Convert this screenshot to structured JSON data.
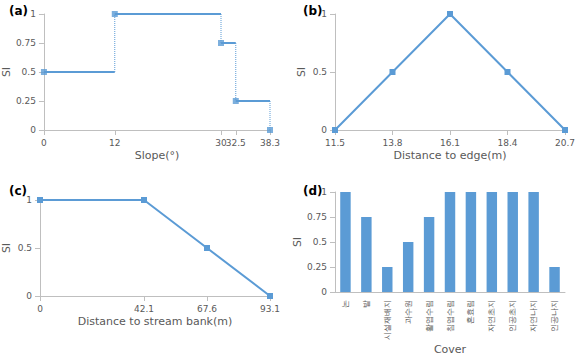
{
  "chart_data": [
    {
      "type": "line",
      "title": "(a)",
      "x_label": "Slope(°)",
      "y_label": "SI",
      "x": [
        0,
        12,
        30,
        32.5,
        38.3
      ],
      "values": [
        0.5,
        1,
        0.75,
        0.25,
        0
      ],
      "xlim": [
        0,
        38.3
      ],
      "xticks": [
        0,
        12,
        30,
        32.5,
        38.3
      ],
      "ylim": [
        0,
        1
      ],
      "yticks": [
        0,
        0.25,
        0.5,
        0.75,
        1
      ],
      "color": "#5b9bd5",
      "marker": "square",
      "line_style": "step",
      "grid": false
    },
    {
      "type": "line",
      "title": "(b)",
      "x_label": "Distance to edge(m)",
      "y_label": "SI",
      "x": [
        11.5,
        13.8,
        16.1,
        18.4,
        20.7
      ],
      "values": [
        0,
        0.5,
        1,
        0.5,
        0
      ],
      "xlim": [
        11.5,
        20.7
      ],
      "xticks": [
        11.5,
        13.8,
        16.1,
        18.4,
        20.7
      ],
      "ylim": [
        0,
        1
      ],
      "yticks": [
        0,
        0.5,
        1
      ],
      "color": "#5b9bd5",
      "marker": "square",
      "line_style": "solid",
      "grid": false
    },
    {
      "type": "line",
      "title": "(c)",
      "x_label": "Distance to stream bank(m)",
      "y_label": "SI",
      "x": [
        0,
        42.1,
        67.6,
        93.1
      ],
      "values": [
        1,
        1,
        0.5,
        0
      ],
      "xlim": [
        0,
        93.1
      ],
      "xticks": [
        0,
        42.1,
        67.6,
        93.1
      ],
      "ylim": [
        0,
        1
      ],
      "yticks": [
        0,
        0.5,
        1
      ],
      "color": "#5b9bd5",
      "marker": "square",
      "line_style": "solid",
      "grid": false
    },
    {
      "type": "bar",
      "title": "(d)",
      "x_label": "Cover",
      "y_label": "SI",
      "categories": [
        "논",
        "밭",
        "시설재배지",
        "과수원",
        "활엽수림",
        "침엽수림",
        "혼효림",
        "자연초지",
        "인공초지",
        "자연나지",
        "인공나지"
      ],
      "values": [
        1,
        0.75,
        0.25,
        0.5,
        0.75,
        1,
        1,
        1,
        1,
        1,
        0.25
      ],
      "ylim": [
        0,
        1
      ],
      "yticks": [
        0,
        0.25,
        0.5,
        0.75,
        1
      ],
      "color": "#5b9bd5",
      "grid": false
    }
  ]
}
